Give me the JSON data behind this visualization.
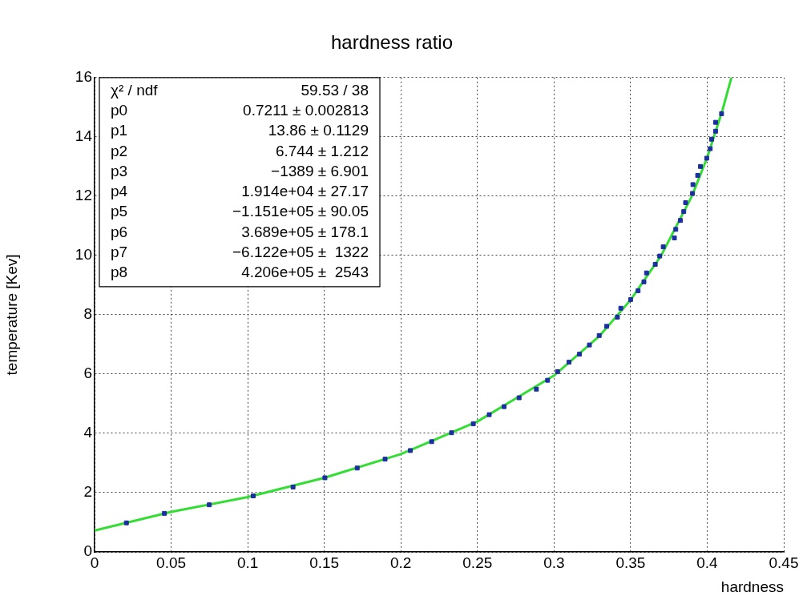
{
  "chart_data": {
    "type": "scatter",
    "title": "hardness ratio",
    "xlabel": "hardness",
    "ylabel": "temperature [Kev]",
    "xlim": [
      0,
      0.45
    ],
    "xticks": [
      0,
      0.05,
      0.1,
      0.15,
      0.2,
      0.25,
      0.3,
      0.35,
      0.4,
      0.45
    ],
    "ylim": [
      0,
      16
    ],
    "yticks": [
      0,
      2,
      4,
      6,
      8,
      10,
      12,
      14,
      16
    ],
    "grid": true,
    "legend": false,
    "marker": "square",
    "series": [
      {
        "type": "line",
        "color": "#33dd33",
        "marker": "none",
        "x": [
          0,
          0.05,
          0.1,
          0.15,
          0.2,
          0.25,
          0.3,
          0.33,
          0.35,
          0.37,
          0.39,
          0.4,
          0.41,
          0.4158
        ],
        "values": [
          0.72,
          1.35,
          1.85,
          2.5,
          3.3,
          4.4,
          5.95,
          7.3,
          8.5,
          10.0,
          12.0,
          13.3,
          14.9,
          16
        ]
      },
      {
        "color": "#1c2fa0",
        "x": [
          0.0208,
          0.0456,
          0.0749,
          0.1036,
          0.1296,
          0.1504,
          0.1715,
          0.1897,
          0.2062,
          0.2201,
          0.2331,
          0.2473,
          0.2577,
          0.2674,
          0.2772,
          0.2885,
          0.2958,
          0.3023,
          0.3098,
          0.3166,
          0.3231,
          0.3295,
          0.3344,
          0.3414,
          0.3436,
          0.35,
          0.3549,
          0.3587,
          0.3604,
          0.3661,
          0.369,
          0.3713,
          0.3786,
          0.3795,
          0.3825,
          0.3847,
          0.3859,
          0.3904,
          0.3907,
          0.3938,
          0.3956,
          0.3997,
          0.402,
          0.4029,
          0.4055,
          0.4055,
          0.4094
        ],
        "values": [
          0.98,
          1.3,
          1.59,
          1.89,
          2.19,
          2.5,
          2.83,
          3.13,
          3.42,
          3.72,
          4.02,
          4.32,
          4.63,
          4.9,
          5.2,
          5.49,
          5.79,
          6.08,
          6.4,
          6.67,
          6.98,
          7.3,
          7.61,
          7.92,
          8.22,
          8.51,
          8.81,
          9.11,
          9.41,
          9.7,
          9.98,
          10.29,
          10.59,
          10.88,
          11.18,
          11.48,
          11.78,
          12.09,
          12.39,
          12.7,
          13.0,
          13.28,
          13.6,
          13.92,
          14.19,
          14.49,
          14.78
        ]
      }
    ],
    "annotations": [
      "χ² / ndf  59.53 / 38",
      "p0  0.7211 ± 0.002813",
      "p1  13.86 ± 0.1129",
      "p2  6.744 ± 1.212",
      "p3  −1389 ± 6.901",
      "p4  1.914e+04 ± 27.17",
      "p5  −1.151e+05 ± 90.05",
      "p6  3.689e+05 ± 178.1",
      "p7  −6.122e+05 ±  1322",
      "p8  4.206e+05 ±  2543"
    ]
  }
}
